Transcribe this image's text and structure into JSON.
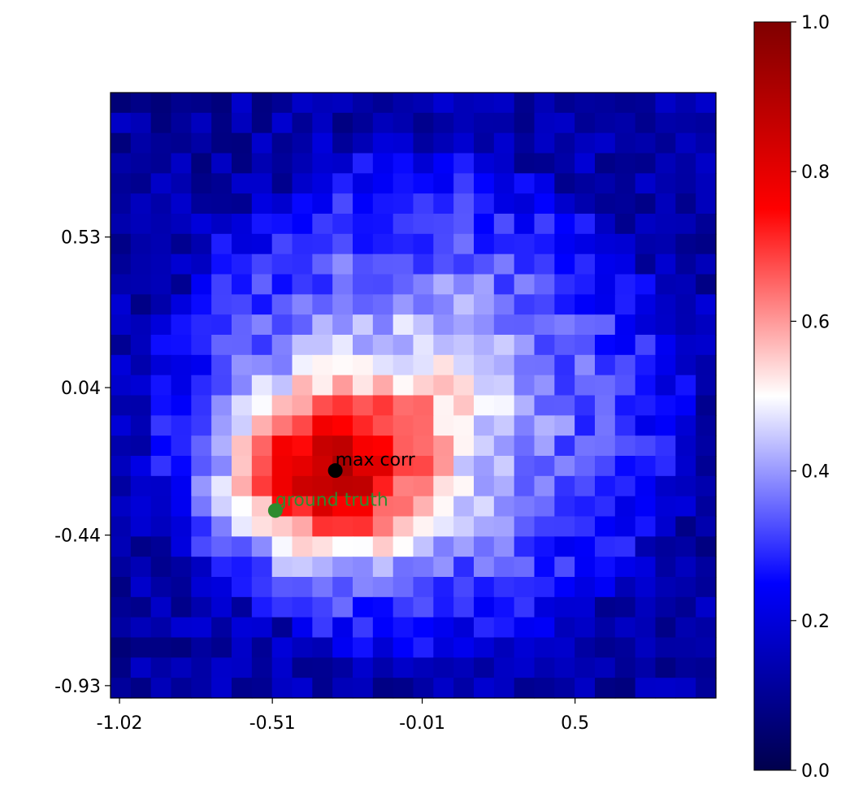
{
  "chart_data": {
    "type": "heatmap",
    "grid": {
      "rows": 30,
      "cols": 30
    },
    "xticks": [
      {
        "value": -1.02,
        "label": "-1.02"
      },
      {
        "value": -0.51,
        "label": "-0.51"
      },
      {
        "value": -0.01,
        "label": "-0.01"
      },
      {
        "value": 0.5,
        "label": "0.5"
      }
    ],
    "yticks": [
      {
        "value": 0.53,
        "label": "0.53"
      },
      {
        "value": 0.04,
        "label": "0.04"
      },
      {
        "value": -0.44,
        "label": "-0.44"
      },
      {
        "value": -0.93,
        "label": "-0.93"
      }
    ],
    "xlim": [
      -1.05,
      0.97
    ],
    "ylim": [
      -0.97,
      1.0
    ],
    "colorbar": {
      "range": [
        0.0,
        1.0
      ],
      "ticks": [
        {
          "value": 0.0,
          "label": "0.0"
        },
        {
          "value": 0.2,
          "label": "0.2"
        },
        {
          "value": 0.4,
          "label": "0.4"
        },
        {
          "value": 0.6,
          "label": "0.6"
        },
        {
          "value": 0.8,
          "label": "0.8"
        },
        {
          "value": 1.0,
          "label": "1.0"
        }
      ],
      "colormap": "seismic"
    },
    "annotations": [
      {
        "label": "max corr",
        "x": -0.3,
        "y": -0.23,
        "color": "#000000"
      },
      {
        "label": "ground truth",
        "x": -0.5,
        "y": -0.36,
        "color": "#2e8b2e"
      }
    ],
    "blob": {
      "center": [
        -0.02,
        -0.02
      ],
      "radius_x": 0.9,
      "radius_y": 0.82,
      "peak": [
        -0.33,
        -0.25
      ]
    }
  }
}
